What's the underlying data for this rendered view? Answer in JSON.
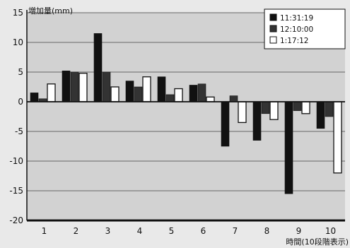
{
  "chart_data": {
    "type": "bar",
    "ylabel": "増加量(mm)",
    "xlabel": "時間(10段階表示)",
    "categories": [
      "1",
      "2",
      "3",
      "4",
      "5",
      "6",
      "7",
      "8",
      "9",
      "10"
    ],
    "ylim": [
      -20,
      15
    ],
    "yticks": [
      15,
      10,
      5,
      0,
      -5,
      -10,
      -15,
      -20
    ],
    "grid": true,
    "legend_position": "top-right",
    "series": [
      {
        "name": "11:31:19",
        "color": "#111111",
        "fill": "solid",
        "values": [
          1.5,
          5.2,
          11.5,
          3.5,
          4.2,
          2.8,
          -7.5,
          -6.5,
          -15.5,
          -4.5
        ]
      },
      {
        "name": "12:10:00",
        "color": "#333333",
        "fill": "solid",
        "values": [
          0.5,
          5.0,
          5.0,
          2.5,
          1.2,
          3.0,
          1.0,
          -2.0,
          -1.5,
          -2.5
        ]
      },
      {
        "name": "1:17:12",
        "color": "#ffffff",
        "fill": "hollow",
        "values": [
          3.0,
          4.8,
          2.5,
          4.2,
          2.2,
          0.8,
          -3.5,
          -3.0,
          -2.0,
          -12.0
        ]
      }
    ]
  }
}
